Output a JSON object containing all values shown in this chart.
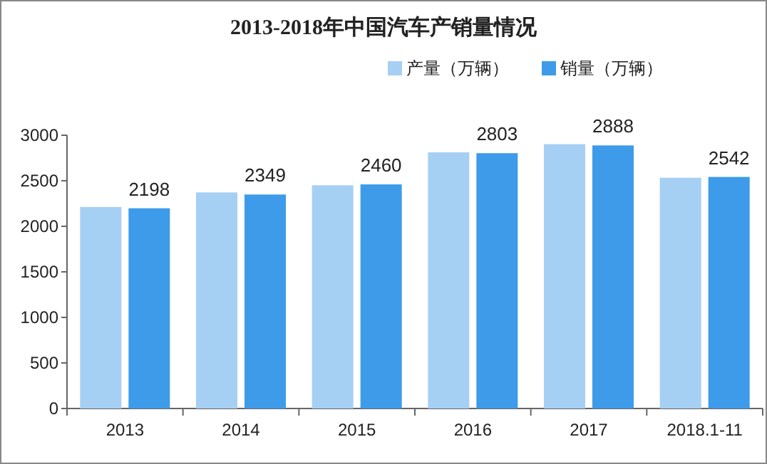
{
  "chart_data": {
    "type": "bar",
    "title": "2013-2018年中国汽车产销量情况",
    "categories": [
      "2013",
      "2014",
      "2015",
      "2016",
      "2017",
      "2018.1-11"
    ],
    "series": [
      {
        "name": "产量（万辆）",
        "color": "#a6cff4",
        "values": [
          2212,
          2372,
          2450,
          2812,
          2902,
          2533
        ]
      },
      {
        "name": "销量（万辆）",
        "color": "#3d9be9",
        "values": [
          2198,
          2349,
          2460,
          2803,
          2888,
          2542
        ],
        "value_labels": [
          "2198",
          "2349",
          "2460",
          "2803",
          "2888",
          "2542"
        ]
      }
    ],
    "ylim": [
      0,
      3000
    ],
    "yticks": [
      0,
      500,
      1000,
      1500,
      2000,
      2500,
      3000
    ],
    "grid": false,
    "legend": "top right"
  }
}
